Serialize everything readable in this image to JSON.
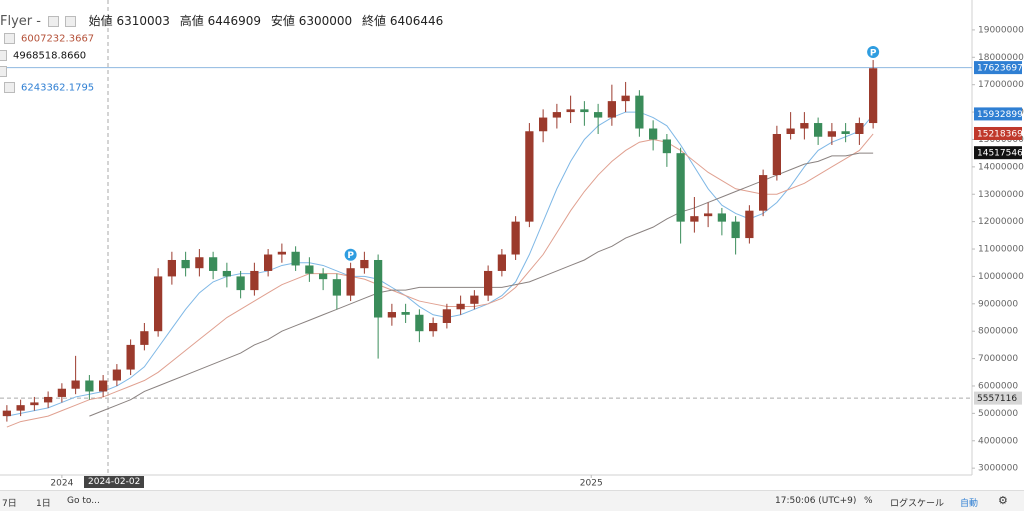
{
  "chart_data": {
    "type": "candlestick",
    "open": [
      4900000,
      5100000,
      5300000,
      5400000,
      5600000,
      5900000,
      6200000,
      5800000,
      6200000,
      6600000,
      7500000,
      8000000,
      10000000,
      10600000,
      10300000,
      10700000,
      10200000,
      10000000,
      9500000,
      10200000,
      10800000,
      10900000,
      10400000,
      10100000,
      9900000,
      9300000,
      10300000,
      10600000,
      8500000,
      8700000,
      8600000,
      8000000,
      8300000,
      8800000,
      9000000,
      9300000,
      10200000,
      10800000,
      12000000,
      15300000,
      15800000,
      16000000,
      16100000,
      16000000,
      15800000,
      16400000,
      16600000,
      15400000,
      15000000,
      14500000,
      12000000,
      12200000,
      12300000,
      12000000,
      11400000,
      12400000,
      13700000,
      15200000,
      15400000,
      15600000,
      15100000,
      15300000,
      15200000,
      15600000
    ],
    "high": [
      5300000,
      5500000,
      5600000,
      5800000,
      6100000,
      7100000,
      6400000,
      6400000,
      6800000,
      7700000,
      8300000,
      10300000,
      10900000,
      10900000,
      11000000,
      10900000,
      10500000,
      10200000,
      10500000,
      11000000,
      11200000,
      11100000,
      10700000,
      10300000,
      10100000,
      10500000,
      10900000,
      10800000,
      9000000,
      9000000,
      8800000,
      8500000,
      9000000,
      9300000,
      9500000,
      10400000,
      11000000,
      12200000,
      15600000,
      16100000,
      16300000,
      16600000,
      16400000,
      16300000,
      17000000,
      17100000,
      16800000,
      15700000,
      15200000,
      14700000,
      12900000,
      12700000,
      12500000,
      12200000,
      12600000,
      13900000,
      15500000,
      16000000,
      16000000,
      15800000,
      15600000,
      15600000,
      15800000,
      17900000
    ],
    "low": [
      4700000,
      4900000,
      5100000,
      5200000,
      5400000,
      5700000,
      5500000,
      5600000,
      6000000,
      6400000,
      7300000,
      7800000,
      9700000,
      10000000,
      10000000,
      9900000,
      9600000,
      9200000,
      9300000,
      10000000,
      10500000,
      10200000,
      9800000,
      9500000,
      8800000,
      9100000,
      10100000,
      7000000,
      8200000,
      8300000,
      7600000,
      7800000,
      8100000,
      8600000,
      8800000,
      9100000,
      10000000,
      10600000,
      11800000,
      14900000,
      15400000,
      15600000,
      15500000,
      15200000,
      15500000,
      16000000,
      15100000,
      14600000,
      14000000,
      11200000,
      11600000,
      11800000,
      11500000,
      10800000,
      11200000,
      12200000,
      13500000,
      15000000,
      15000000,
      14800000,
      14800000,
      14900000,
      14800000,
      15400000
    ],
    "close": [
      5100000,
      5300000,
      5400000,
      5600000,
      5900000,
      6200000,
      5800000,
      6200000,
      6600000,
      7500000,
      8000000,
      10000000,
      10600000,
      10300000,
      10700000,
      10200000,
      10000000,
      9500000,
      10200000,
      10800000,
      10900000,
      10400000,
      10100000,
      9900000,
      9300000,
      10300000,
      10600000,
      8500000,
      8700000,
      8600000,
      8000000,
      8300000,
      8800000,
      9000000,
      9300000,
      10200000,
      10800000,
      12000000,
      15300000,
      15800000,
      16000000,
      16100000,
      16000000,
      15800000,
      16400000,
      16600000,
      15400000,
      15000000,
      14500000,
      12000000,
      12200000,
      12300000,
      12000000,
      11400000,
      12400000,
      13700000,
      15200000,
      15400000,
      15600000,
      15100000,
      15300000,
      15200000,
      15600000,
      17600000
    ],
    "up_color": "#9b3a2c",
    "down_color": "#3a8c5a",
    "lines": [
      {
        "color": "#7fb8e6",
        "values": [
          4900000,
          5000000,
          5100000,
          5200000,
          5400000,
          5600000,
          5700000,
          5800000,
          6000000,
          6300000,
          6700000,
          7400000,
          8100000,
          8800000,
          9400000,
          9800000,
          10000000,
          10100000,
          10100000,
          10200000,
          10400000,
          10500000,
          10500000,
          10400000,
          10200000,
          10000000,
          10000000,
          9900000,
          9600000,
          9300000,
          8900000,
          8600000,
          8500000,
          8600000,
          8800000,
          9000000,
          9300000,
          9800000,
          10800000,
          12000000,
          13200000,
          14200000,
          15000000,
          15500000,
          15800000,
          16000000,
          16000000,
          15800000,
          15500000,
          14800000,
          14000000,
          13200000,
          12600000,
          12300000,
          12100000,
          12300000,
          12700000,
          13300000,
          14000000,
          14600000,
          14900000,
          15100000,
          15300000,
          15900000
        ]
      },
      {
        "color": "#e0a090",
        "values": [
          4500000,
          4700000,
          4800000,
          4900000,
          5100000,
          5300000,
          5500000,
          5600000,
          5800000,
          6000000,
          6200000,
          6500000,
          6900000,
          7300000,
          7700000,
          8100000,
          8500000,
          8800000,
          9100000,
          9400000,
          9700000,
          9900000,
          10100000,
          10100000,
          10100000,
          10000000,
          9900000,
          9700000,
          9500000,
          9300000,
          9100000,
          9000000,
          8900000,
          8900000,
          8900000,
          9000000,
          9200000,
          9600000,
          10200000,
          10800000,
          11600000,
          12400000,
          13100000,
          13700000,
          14200000,
          14600000,
          14900000,
          15000000,
          14900000,
          14600000,
          14200000,
          13800000,
          13500000,
          13200000,
          13100000,
          13000000,
          13000000,
          13200000,
          13400000,
          13700000,
          14000000,
          14300000,
          14600000,
          15200000
        ]
      },
      {
        "color": "#8a8280",
        "values": [
          null,
          null,
          null,
          null,
          null,
          null,
          4900000,
          5100000,
          5300000,
          5500000,
          5800000,
          6000000,
          6200000,
          6400000,
          6600000,
          6800000,
          7000000,
          7200000,
          7500000,
          7700000,
          8000000,
          8200000,
          8400000,
          8600000,
          8800000,
          9000000,
          9200000,
          9400000,
          9500000,
          9500000,
          9600000,
          9600000,
          9600000,
          9600000,
          9600000,
          9600000,
          9600000,
          9700000,
          9800000,
          10000000,
          10200000,
          10400000,
          10600000,
          10900000,
          11100000,
          11400000,
          11600000,
          11800000,
          12100000,
          12350000,
          12500000,
          12700000,
          12900000,
          13100000,
          13300000,
          13500000,
          13700000,
          13900000,
          14100000,
          14200000,
          14400000,
          14400000,
          14500000,
          14500000
        ]
      }
    ],
    "ylim": [
      2750000,
      19800000
    ],
    "yticks": [
      3000000,
      4000000,
      5000000,
      6000000,
      7000000,
      8000000,
      9000000,
      10000000,
      11000000,
      12000000,
      13000000,
      14000000,
      15000000,
      16000000,
      17000000,
      18000000,
      19000000
    ],
    "xticks": [
      {
        "value": 4,
        "label": "2024"
      },
      {
        "value": 42.5,
        "label": "2025"
      }
    ],
    "grid": false,
    "markers": [
      {
        "index": 25,
        "label": "P"
      },
      {
        "index": 63,
        "label": "P"
      }
    ],
    "price_labels": [
      {
        "value": 17623697,
        "color": "#2f7fd3",
        "text_color": "#ffffff",
        "line": "solid"
      },
      {
        "value": 15932899,
        "color": "#2f7fd3",
        "text_color": "#ffffff"
      },
      {
        "value": 15218369,
        "color": "#c0392b",
        "text_color": "#ffffff"
      },
      {
        "value": 14517546,
        "color": "#111111",
        "text_color": "#ffffff"
      },
      {
        "value": 5557116,
        "color": "#d6d6d6",
        "text_color": "#222222",
        "line": "dashed"
      }
    ]
  },
  "ui": {
    "symbol": "Flyer -",
    "ohlc": [
      {
        "label": "始値",
        "value": "6310003"
      },
      {
        "label": "高値",
        "value": "6446909"
      },
      {
        "label": "安値",
        "value": "6300000"
      },
      {
        "label": "終値",
        "value": "6406446"
      }
    ],
    "legend": [
      {
        "text": "6007232.3667",
        "color": "#b5523a"
      },
      {
        "text": "4968518.8660",
        "color": "#111111"
      },
      {
        "text": "6243362.1795",
        "color": "#2f7fd3"
      }
    ],
    "crosshair_date": "2024-02-02",
    "toolbar": {
      "range_7d": "7日",
      "range_1d": "1日",
      "goto": "Go to...",
      "time": "17:50:06 (UTC+9)",
      "percent": "%",
      "log": "ログスケール",
      "auto": "自動"
    }
  }
}
